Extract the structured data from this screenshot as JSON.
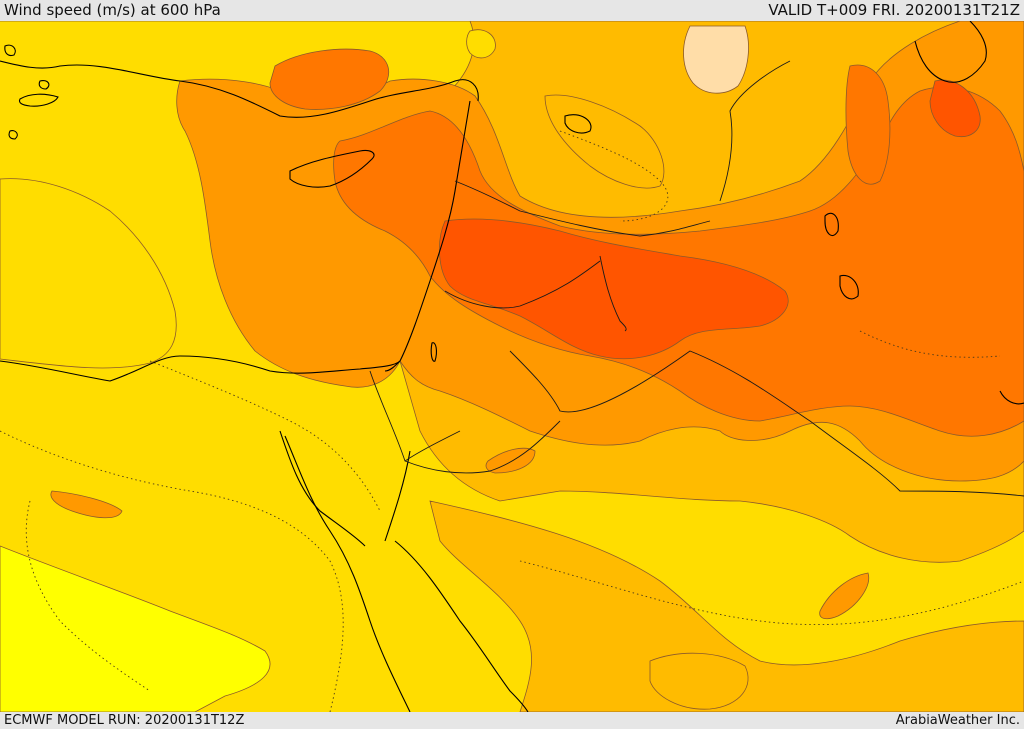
{
  "header": {
    "title": "Wind speed (m/s) at 600 hPa",
    "valid": "VALID T+009 FRI. 20200131T21Z"
  },
  "footer": {
    "model_run": "ECMWF MODEL RUN: 20200131T12Z",
    "credit": "ArabiaWeather Inc."
  },
  "palette": {
    "yellow": "#ffff00",
    "gold": "#ffdd00",
    "amber": "#ffbb00",
    "orange": "#ff9900",
    "dark_orange": "#ff7700",
    "red_orange": "#ff5500",
    "peach": "#ffdda8",
    "contour": "#8b5a2b",
    "coastline": "#000000",
    "border": "#1a1a1a"
  }
}
